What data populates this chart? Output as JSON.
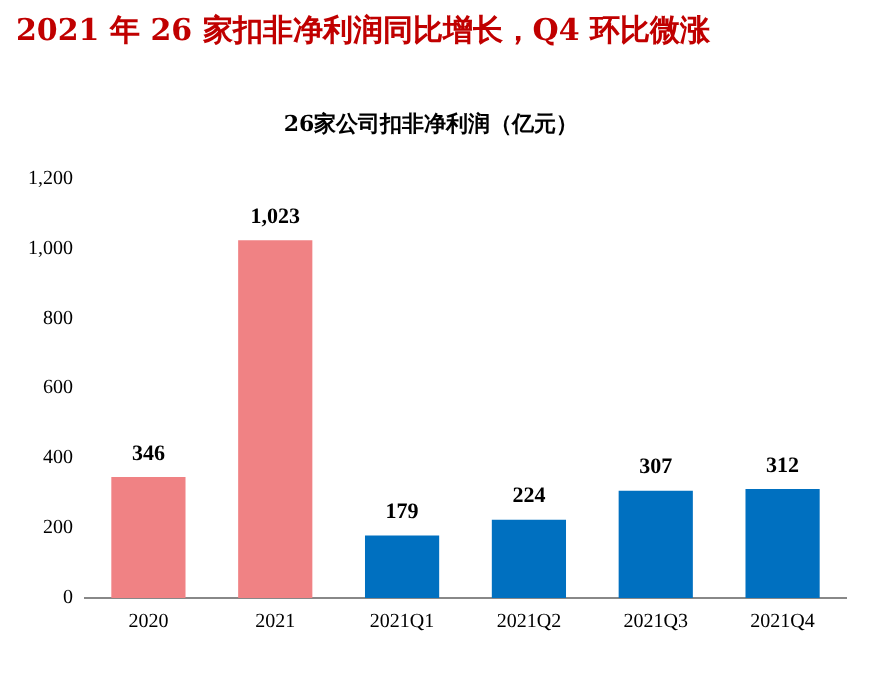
{
  "chart_data": {
    "type": "bar",
    "title": "2021 年 26 家扣非净利润同比增长，Q4 环比微涨",
    "subtitle": "26家公司扣非净利润（亿元）",
    "categories": [
      "2020",
      "2021",
      "2021Q1",
      "2021Q2",
      "2021Q3",
      "2021Q4"
    ],
    "values": [
      346,
      1023,
      179,
      224,
      307,
      312
    ],
    "colors": [
      "#f08284",
      "#f08284",
      "#0070c0",
      "#0070c0",
      "#0070c0",
      "#0070c0"
    ],
    "ylim": [
      0,
      1200
    ],
    "yticks": [
      0,
      200,
      400,
      600,
      800,
      {
        "value": 1000,
        "label": "1,000"
      },
      {
        "value": 1200,
        "label": "1,200"
      }
    ],
    "value_labels": [
      "346",
      "1,023",
      "179",
      "224",
      "307",
      "312"
    ],
    "grid": false,
    "legend": false
  }
}
